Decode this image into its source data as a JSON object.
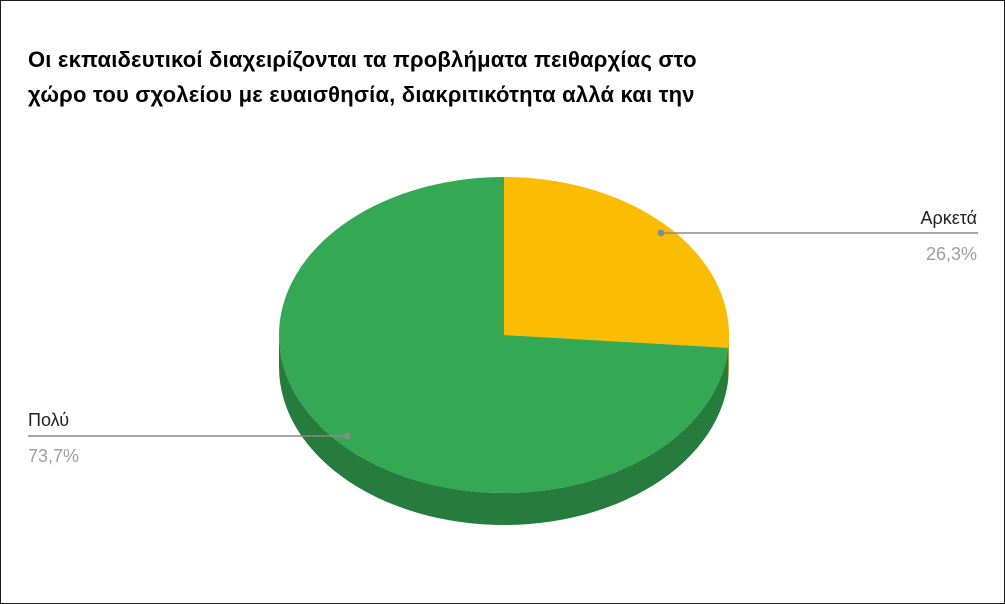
{
  "chart_data": {
    "type": "pie",
    "style": "3d",
    "title_lines": [
      "Οι εκπαιδευτικοί διαχειρίζονται τα προβλήματα πειθαρχίας στο",
      "χώρο του σχολείου με ευαισθησία, διακριτικότητα αλλά και την"
    ],
    "slices": [
      {
        "label": "Αρκετά",
        "value": 26.3,
        "value_label": "26,3%",
        "color": "#fbbc04",
        "side_color": "#c99603"
      },
      {
        "label": "Πολύ",
        "value": 73.7,
        "value_label": "73,7%",
        "color": "#34a853",
        "side_color": "#267c3d"
      }
    ],
    "legend": "none"
  },
  "colors": {
    "leader_line": "#8a8a8a",
    "label_text": "#222222",
    "value_text": "#9e9e9e"
  }
}
